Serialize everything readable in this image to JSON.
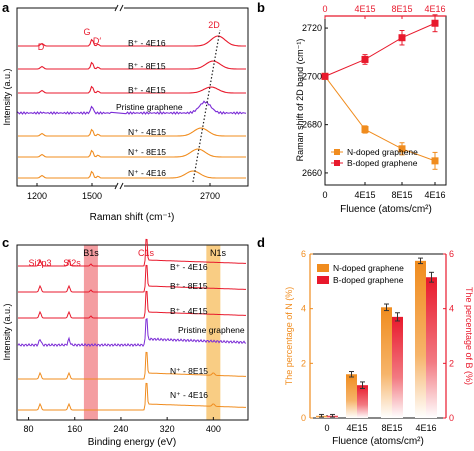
{
  "colors": {
    "boron": "#e8192c",
    "nitrogen": "#f08c1e",
    "pristine": "#7b2cd6",
    "dark": "#111111",
    "dotted": "#222222",
    "b1s_band": "#f28c90",
    "n1s_band": "#f8c46e"
  },
  "chart_data": [
    {
      "panel": "a",
      "type": "line",
      "title": "",
      "xlabel": "Raman shift (cm⁻¹)",
      "ylabel": "Intensity (a.u.)",
      "xticks": [
        "1200",
        "1500",
        "2700"
      ],
      "peak_labels": [
        "D",
        "G",
        "D′",
        "2D"
      ],
      "series": [
        {
          "name": "B⁺ - 4E16",
          "family": "boron"
        },
        {
          "name": "B⁺ - 8E15",
          "family": "boron"
        },
        {
          "name": "B⁺ - 4E15",
          "family": "boron"
        },
        {
          "name": "Pristine graphene",
          "family": "pristine"
        },
        {
          "name": "N⁺ - 4E15",
          "family": "nitrogen"
        },
        {
          "name": "N⁺ - 8E15",
          "family": "nitrogen"
        },
        {
          "name": "N⁺ - 4E16",
          "family": "nitrogen"
        }
      ],
      "axis_break": true,
      "grid": false
    },
    {
      "panel": "b",
      "type": "line",
      "title": "",
      "xlabel": "Fluence (atoms/cm²)",
      "ylabel": "Raman shift of 2D band (cm⁻¹)",
      "categories": [
        "0",
        "4E15",
        "8E15",
        "4E16"
      ],
      "top_categories": [
        "0",
        "4E15",
        "8E15",
        "4E16"
      ],
      "ylim": [
        2655,
        2725
      ],
      "yticks": [
        2660,
        2680,
        2700,
        2720
      ],
      "legend_position": "lower-left",
      "series": [
        {
          "name": "N-doped graphene",
          "family": "nitrogen",
          "values": [
            2700,
            2678,
            2670,
            2665
          ],
          "errors": [
            0,
            1.5,
            2.5,
            3.5
          ]
        },
        {
          "name": "B-doped graphene",
          "family": "boron",
          "values": [
            2700,
            2707,
            2716,
            2722
          ],
          "errors": [
            0,
            2,
            3,
            3.5
          ]
        }
      ],
      "grid": false
    },
    {
      "panel": "c",
      "type": "line",
      "title": "",
      "xlabel": "Binding energy (eV)",
      "ylabel": "Intensity (a.u.)",
      "xticks": [
        "80",
        "160",
        "240",
        "320",
        "400"
      ],
      "xlim": [
        60,
        460
      ],
      "peak_labels": [
        "Si2p3",
        "Si2s",
        "B1s",
        "C1s",
        "N1s"
      ],
      "band_centers": [
        188,
        400
      ],
      "series": [
        {
          "name": "B⁺ - 4E16",
          "family": "boron"
        },
        {
          "name": "B⁺ - 8E15",
          "family": "boron"
        },
        {
          "name": "B⁺ - 4E15",
          "family": "boron"
        },
        {
          "name": "Pristine graphene",
          "family": "pristine"
        },
        {
          "name": "N⁺ - 8E15",
          "family": "nitrogen"
        },
        {
          "name": "N⁺ - 4E16",
          "family": "nitrogen"
        }
      ],
      "grid": false
    },
    {
      "panel": "d",
      "type": "bar",
      "title": "",
      "xlabel": "Fluence (atoms/cm²)",
      "ylabel": "The percentage of N (%)",
      "ylabel_right": "The percentage of B (%)",
      "categories": [
        "0",
        "4E15",
        "8E15",
        "4E16"
      ],
      "ylim": [
        0,
        6
      ],
      "yticks": [
        0,
        2,
        4,
        6
      ],
      "legend_position": "top-left",
      "series": [
        {
          "name": "N-doped graphene",
          "family": "nitrogen",
          "values": [
            0.08,
            1.6,
            4.05,
            5.75
          ],
          "errors": [
            0.05,
            0.1,
            0.12,
            0.1
          ]
        },
        {
          "name": "B-doped graphene",
          "family": "boron",
          "values": [
            0.08,
            1.2,
            3.7,
            5.15
          ],
          "errors": [
            0.05,
            0.12,
            0.15,
            0.18
          ]
        }
      ],
      "grid": false
    }
  ]
}
